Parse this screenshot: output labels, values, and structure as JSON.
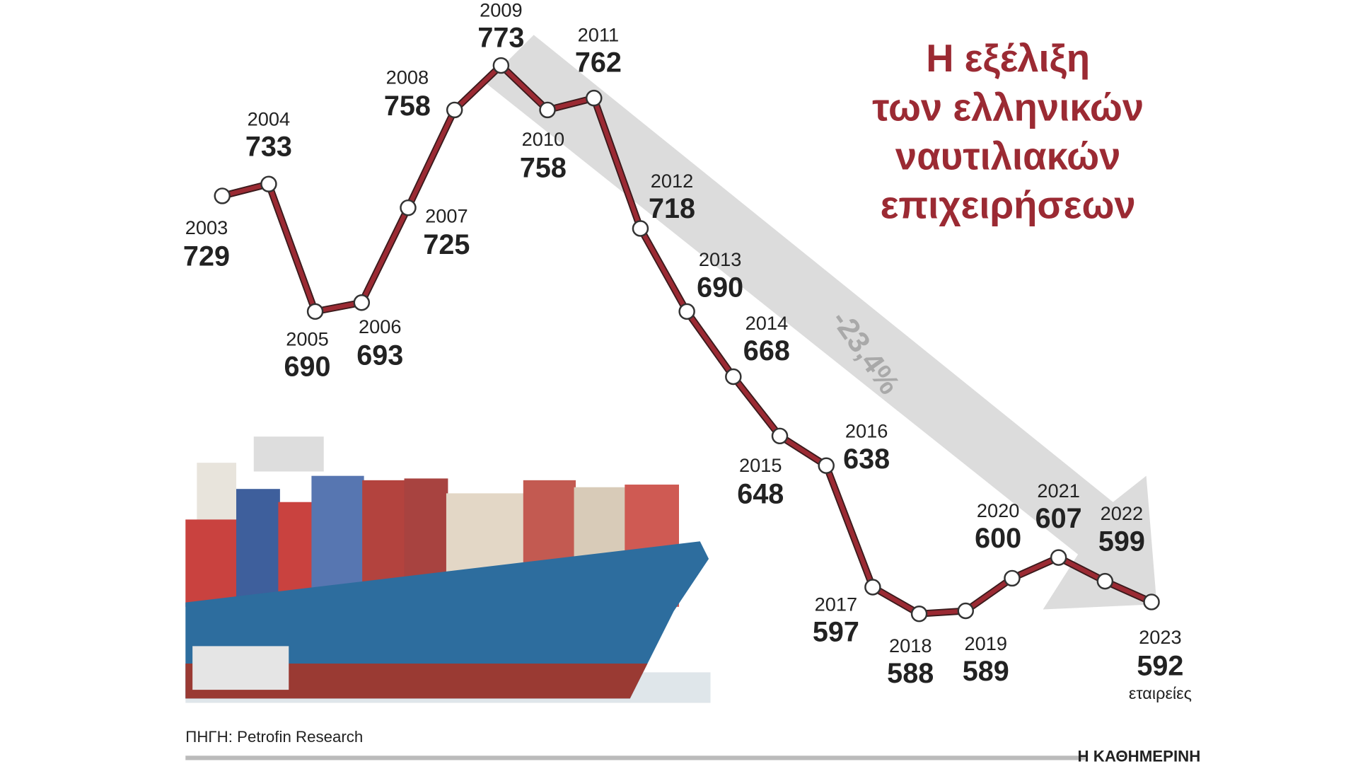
{
  "chart_data": {
    "type": "line",
    "title": [
      "Η εξέλιξη",
      "των ελληνικών",
      "ναυτιλιακών",
      "επιχειρήσεων"
    ],
    "x": [
      2003,
      2004,
      2005,
      2006,
      2007,
      2008,
      2009,
      2010,
      2011,
      2012,
      2013,
      2014,
      2015,
      2016,
      2017,
      2018,
      2019,
      2020,
      2021,
      2022,
      2023
    ],
    "values": [
      729,
      733,
      690,
      693,
      725,
      758,
      773,
      758,
      762,
      718,
      690,
      668,
      648,
      638,
      597,
      588,
      589,
      600,
      607,
      599,
      592
    ],
    "unit_label": "εταιρείες",
    "annotation": "-23,4%",
    "color": "#9b2a33",
    "source": "ΠΗΓΗ: Petrofin Research",
    "publisher": "Η ΚΑΘΗΜΕΡΙΝΗ"
  }
}
